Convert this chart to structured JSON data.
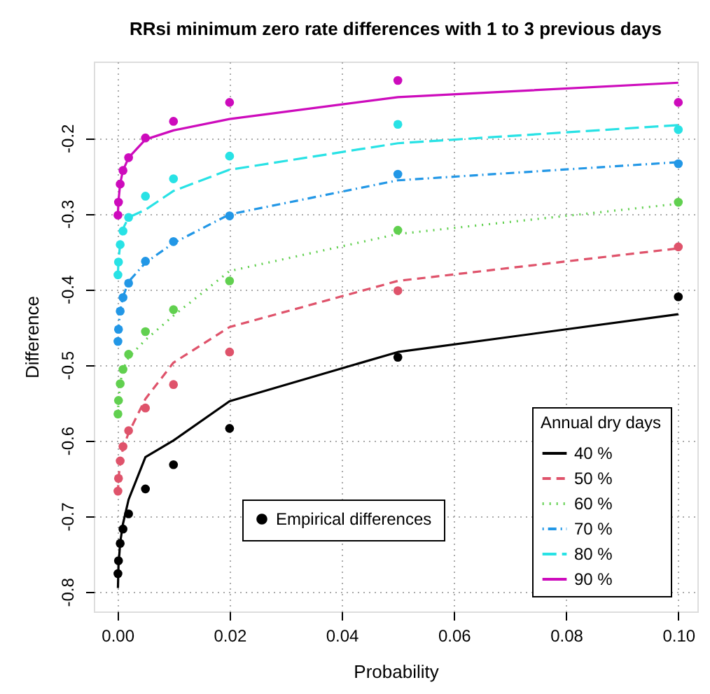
{
  "chart_data": {
    "type": "line",
    "title": "RRsi minimum zero rate differences with 1 to 3 previous days",
    "xlabel": "Probability",
    "ylabel": "Difference",
    "legend_title": "Annual dry days",
    "xlim": [
      -0.0042,
      0.1034
    ],
    "ylim": [
      -0.826,
      -0.099
    ],
    "xticks": [
      {
        "value": 0,
        "label": "0.00"
      },
      0.02,
      0.04,
      0.06,
      0.08,
      {
        "value": 0.1,
        "label": "0.10"
      }
    ],
    "yticks": [
      -0.8,
      -0.7,
      -0.6,
      -0.5,
      -0.4,
      -0.3,
      -0.2
    ],
    "grid": true,
    "legend": "bottom right",
    "series": [
      {
        "name": "40 %",
        "line_style": "solid",
        "color": "#000000",
        "x": [
          0.0001,
          0.0002,
          0.0005,
          0.001,
          0.002,
          0.005,
          0.01,
          0.02,
          0.05,
          0.1
        ],
        "values": [
          -0.795,
          -0.765,
          -0.735,
          -0.71,
          -0.678,
          -0.622,
          -0.6,
          -0.548,
          -0.483,
          -0.433
        ]
      },
      {
        "name": "50 %",
        "line_style": "dashed",
        "color": "#df536b",
        "x": [
          0.0001,
          0.0002,
          0.0005,
          0.001,
          0.002,
          0.005,
          0.01,
          0.02,
          0.05,
          0.1
        ],
        "values": [
          -0.67,
          -0.65,
          -0.63,
          -0.61,
          -0.59,
          -0.545,
          -0.497,
          -0.45,
          -0.389,
          -0.346
        ]
      },
      {
        "name": "60 %",
        "line_style": "dotted",
        "color": "#61d04f",
        "x": [
          0.0001,
          0.0002,
          0.0005,
          0.001,
          0.002,
          0.005,
          0.01,
          0.02,
          0.05,
          0.1
        ],
        "values": [
          -0.565,
          -0.547,
          -0.525,
          -0.506,
          -0.49,
          -0.467,
          -0.435,
          -0.376,
          -0.327,
          -0.287
        ]
      },
      {
        "name": "70 %",
        "line_style": "dashdot",
        "color": "#2297e6",
        "x": [
          0.0001,
          0.0002,
          0.0005,
          0.001,
          0.002,
          0.005,
          0.01,
          0.02,
          0.05,
          0.1
        ],
        "values": [
          -0.465,
          -0.45,
          -0.428,
          -0.41,
          -0.39,
          -0.365,
          -0.339,
          -0.301,
          -0.256,
          -0.232
        ]
      },
      {
        "name": "80 %",
        "line_style": "longdash",
        "color": "#28e2e5",
        "x": [
          0.0001,
          0.0002,
          0.0005,
          0.001,
          0.002,
          0.005,
          0.01,
          0.02,
          0.05,
          0.1
        ],
        "values": [
          -0.38,
          -0.362,
          -0.34,
          -0.32,
          -0.305,
          -0.295,
          -0.27,
          -0.242,
          -0.207,
          -0.183
        ]
      },
      {
        "name": "90 %",
        "line_style": "solid",
        "color": "#cd0bbc",
        "x": [
          0.0001,
          0.0002,
          0.0005,
          0.001,
          0.002,
          0.005,
          0.01,
          0.02,
          0.05,
          0.1
        ],
        "values": [
          -0.3,
          -0.283,
          -0.26,
          -0.243,
          -0.226,
          -0.202,
          -0.19,
          -0.175,
          -0.146,
          -0.127
        ]
      },
      {
        "name": "Empirical differences",
        "type": "scatter",
        "marker": "circle",
        "color": "#000000",
        "x": [
          0.0001,
          0.0002,
          0.0005,
          0.001,
          0.002,
          0.005,
          0.01,
          0.02,
          0.05,
          0.1,
          0.0001,
          0.0002,
          0.0005,
          0.001,
          0.002,
          0.005,
          0.01,
          0.02,
          0.05,
          0.1,
          0.0001,
          0.0002,
          0.0005,
          0.001,
          0.002,
          0.005,
          0.01,
          0.02,
          0.05,
          0.1,
          0.0001,
          0.0002,
          0.0005,
          0.001,
          0.002,
          0.005,
          0.01,
          0.02,
          0.05,
          0.1,
          0.0001,
          0.0002,
          0.0005,
          0.001,
          0.002,
          0.005,
          0.01,
          0.02,
          0.05,
          0.1,
          0.0001,
          0.0002,
          0.0005,
          0.001,
          0.002,
          0.005,
          0.01,
          0.02,
          0.05,
          0.1
        ],
        "values": [
          -0.776,
          -0.759,
          -0.736,
          -0.717,
          -0.697,
          -0.664,
          -0.632,
          -0.584,
          -0.49,
          -0.41,
          -0.667,
          -0.65,
          -0.627,
          -0.608,
          -0.587,
          -0.557,
          -0.526,
          -0.483,
          -0.402,
          -0.344,
          -0.565,
          -0.547,
          -0.525,
          -0.506,
          -0.486,
          -0.456,
          -0.427,
          -0.389,
          -0.322,
          -0.285,
          -0.469,
          -0.453,
          -0.429,
          -0.411,
          -0.392,
          -0.363,
          -0.337,
          -0.303,
          -0.248,
          -0.234,
          -0.381,
          -0.364,
          -0.341,
          -0.323,
          -0.305,
          -0.277,
          -0.254,
          -0.224,
          -0.182,
          -0.189,
          -0.302,
          -0.285,
          -0.261,
          -0.243,
          -0.226,
          -0.2,
          -0.178,
          -0.153,
          -0.124,
          -0.153
        ],
        "colors": [
          "#000000",
          "#000000",
          "#000000",
          "#000000",
          "#000000",
          "#000000",
          "#000000",
          "#000000",
          "#000000",
          "#000000",
          "#df536b",
          "#df536b",
          "#df536b",
          "#df536b",
          "#df536b",
          "#df536b",
          "#df536b",
          "#df536b",
          "#df536b",
          "#df536b",
          "#61d04f",
          "#61d04f",
          "#61d04f",
          "#61d04f",
          "#61d04f",
          "#61d04f",
          "#61d04f",
          "#61d04f",
          "#61d04f",
          "#61d04f",
          "#2297e6",
          "#2297e6",
          "#2297e6",
          "#2297e6",
          "#2297e6",
          "#2297e6",
          "#2297e6",
          "#2297e6",
          "#2297e6",
          "#2297e6",
          "#28e2e5",
          "#28e2e5",
          "#28e2e5",
          "#28e2e5",
          "#28e2e5",
          "#28e2e5",
          "#28e2e5",
          "#28e2e5",
          "#28e2e5",
          "#28e2e5",
          "#cd0bbc",
          "#cd0bbc",
          "#cd0bbc",
          "#cd0bbc",
          "#cd0bbc",
          "#cd0bbc",
          "#cd0bbc",
          "#cd0bbc",
          "#cd0bbc",
          "#cd0bbc"
        ]
      }
    ]
  }
}
